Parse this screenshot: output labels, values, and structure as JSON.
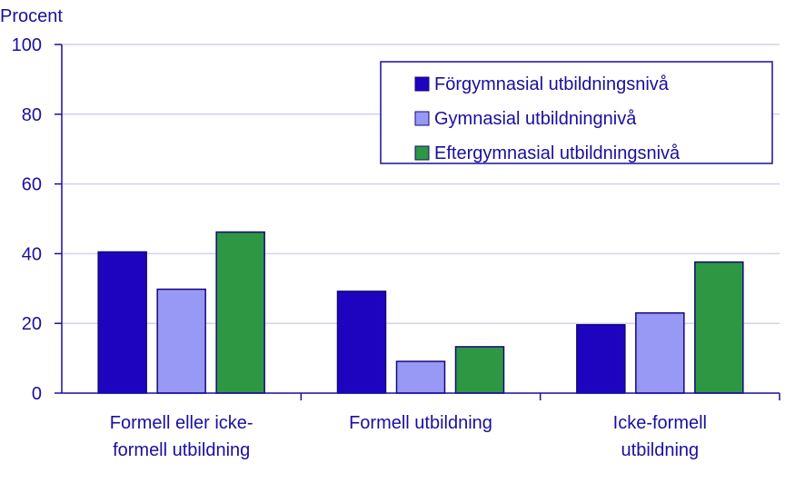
{
  "chart_data": {
    "type": "bar",
    "ylabel": "Procent",
    "ylim": [
      0,
      100
    ],
    "yticks": [
      0,
      20,
      40,
      60,
      80,
      100
    ],
    "categories": [
      [
        "Formell eller icke-",
        "formell utbildning"
      ],
      [
        "Formell utbildning"
      ],
      [
        "Icke-formell",
        "utbildning"
      ]
    ],
    "series": [
      {
        "name": "Förgymnasial utbildningsnivå",
        "color": "#1f04bf",
        "values": [
          40.5,
          29.2,
          19.6
        ]
      },
      {
        "name": "Gymnasial utbildningnivå",
        "color": "#9898f5",
        "values": [
          29.8,
          9.1,
          23.0
        ]
      },
      {
        "name": "Eftergymnasial utbildningsnivå",
        "color": "#2d9743",
        "values": [
          46.2,
          13.3,
          37.6
        ]
      }
    ],
    "legend_position": "top-right",
    "grid": true
  }
}
